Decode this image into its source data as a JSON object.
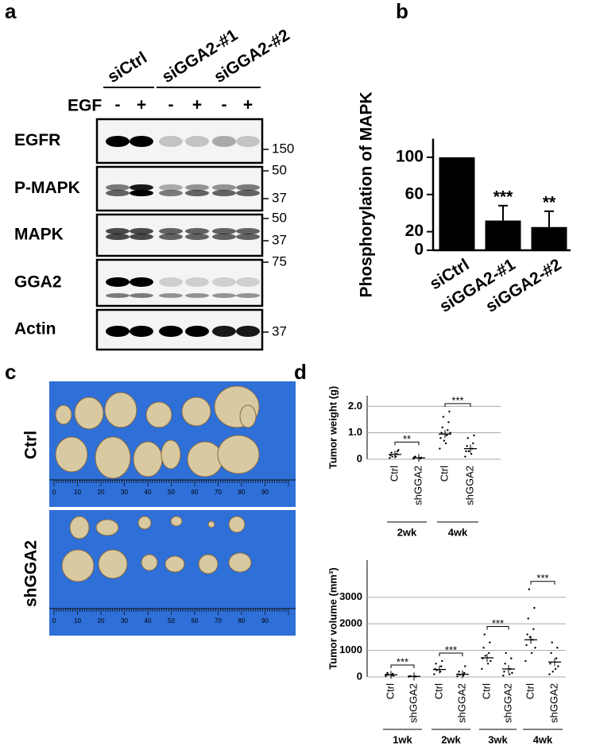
{
  "panel_labels": [
    "a",
    "b",
    "c",
    "d"
  ],
  "blot": {
    "groups": [
      "siCtrl",
      "siGGA2-#1",
      "siGGA2-#2"
    ],
    "treatment_label": "EGF",
    "treatments": [
      "-",
      "+",
      "-",
      "+",
      "-",
      "+"
    ],
    "rows": [
      "EGFR",
      "P-MAPK",
      "MAPK",
      "GGA2",
      "Actin"
    ],
    "mw_markers": [
      [
        150
      ],
      [
        50,
        37
      ],
      [
        50,
        37
      ],
      [
        75
      ],
      [
        37
      ]
    ]
  },
  "photos": {
    "labels": [
      "Ctrl",
      "shGGA2"
    ],
    "ruler_labels": [
      0,
      10,
      20,
      30,
      40,
      50,
      60,
      70,
      80,
      90
    ]
  },
  "chart_data": [
    {
      "type": "bar",
      "y_label": "Phosphorylation of MAPK",
      "categories": [
        "siCtrl",
        "siGGA2-#1",
        "siGGA2-#2"
      ],
      "values": [
        100,
        32,
        25
      ],
      "errors": [
        null,
        16,
        17
      ],
      "annotations": [
        null,
        "***",
        "**"
      ],
      "color": "#000000",
      "ylim": [
        0,
        120
      ],
      "yticks": [
        0,
        20,
        60,
        100
      ]
    },
    {
      "type": "dotplot",
      "y_label": "Tumor weight (g)",
      "categories": [
        "Ctrl",
        "shGGA2",
        "Ctrl",
        "shGGA2"
      ],
      "periods": [
        "2wk",
        "4wk"
      ],
      "significance": [
        "**",
        "***"
      ],
      "means": [
        0.18,
        0.05,
        0.95,
        0.4
      ],
      "points": [
        [
          0.05,
          0.1,
          0.15,
          0.2,
          0.25,
          0.3,
          0.1,
          0.35
        ],
        [
          0.02,
          0.05,
          0.08,
          0.03,
          0.1,
          0.06
        ],
        [
          0.4,
          0.6,
          0.8,
          0.9,
          1.0,
          1.1,
          1.2,
          1.4,
          1.6,
          1.8,
          0.7,
          1.0
        ],
        [
          0.1,
          0.2,
          0.3,
          0.4,
          0.5,
          0.6,
          0.8,
          0.9,
          0.3
        ]
      ],
      "ylim": [
        0,
        2.4
      ],
      "yticks": [
        0,
        {
          "value": 1,
          "label": "1.0"
        },
        {
          "value": 2,
          "label": "2.0"
        }
      ],
      "grid": true
    },
    {
      "type": "dotplot",
      "y_label": "Tumor volume (mm³)",
      "categories": [
        "Ctrl",
        "shGGA2",
        "Ctrl",
        "shGGA2",
        "Ctrl",
        "shGGA2",
        "Ctrl",
        "shGGA2"
      ],
      "periods": [
        "1wk",
        "2wk",
        "3wk",
        "4wk"
      ],
      "significance": [
        "***",
        "***",
        "***",
        "***"
      ],
      "means": [
        80,
        20,
        280,
        100,
        720,
        300,
        1400,
        560
      ],
      "points": [
        [
          30,
          60,
          90,
          120,
          150,
          50,
          80
        ],
        [
          10,
          20,
          30,
          15,
          25
        ],
        [
          100,
          200,
          300,
          400,
          500,
          600,
          250
        ],
        [
          20,
          50,
          100,
          150,
          200,
          400,
          80
        ],
        [
          300,
          500,
          700,
          900,
          1100,
          1300,
          1600,
          600,
          800
        ],
        [
          50,
          100,
          200,
          300,
          500,
          700,
          900,
          150
        ],
        [
          600,
          900,
          1200,
          1400,
          1600,
          1800,
          2200,
          2600,
          3300,
          1100,
          1500
        ],
        [
          100,
          300,
          500,
          700,
          900,
          1100,
          1300,
          400,
          200
        ]
      ],
      "ylim": [
        0,
        4400
      ],
      "yticks": [
        0,
        1000,
        2000,
        3000
      ],
      "grid": true
    }
  ]
}
